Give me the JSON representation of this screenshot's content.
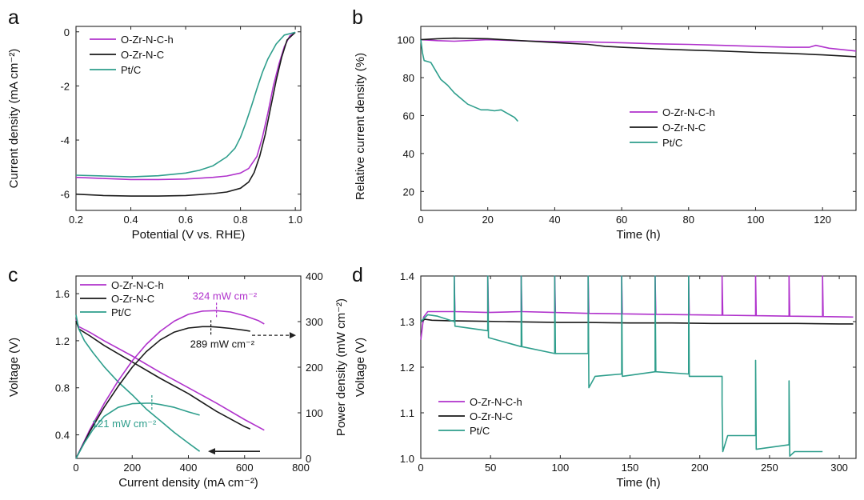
{
  "colors": {
    "purple": "#B032CC",
    "black": "#1a1a1a",
    "teal": "#2E9E8C"
  },
  "chart_data": [
    {
      "panel": "a",
      "type": "line",
      "xlabel": "Potential (V vs. RHE)",
      "ylabel": "Current density (mA cm⁻²)",
      "xlim": [
        0.2,
        1.02
      ],
      "ylim": [
        -6.6,
        0.2
      ],
      "xticks": [
        0.2,
        0.4,
        0.6,
        0.8,
        1.0
      ],
      "xtick_labels": [
        "0.2",
        "0.4",
        "0.6",
        "0.8",
        "1.0"
      ],
      "yticks": [
        0,
        -2,
        -4,
        -6
      ],
      "ytick_labels": [
        "0",
        "-2",
        "-4",
        "-6"
      ],
      "legend_position": "top-left",
      "series": [
        {
          "name": "O-Zr-N-C-h",
          "color": "#B032CC",
          "x": [
            0.2,
            0.3,
            0.4,
            0.5,
            0.6,
            0.7,
            0.75,
            0.8,
            0.83,
            0.86,
            0.88,
            0.9,
            0.92,
            0.94,
            0.96,
            0.98,
            1.0
          ],
          "y": [
            -5.38,
            -5.42,
            -5.46,
            -5.46,
            -5.44,
            -5.38,
            -5.33,
            -5.22,
            -5.05,
            -4.6,
            -3.9,
            -3.0,
            -2.0,
            -1.2,
            -0.55,
            -0.15,
            -0.02
          ]
        },
        {
          "name": "O-Zr-N-C",
          "color": "#1a1a1a",
          "x": [
            0.2,
            0.3,
            0.4,
            0.5,
            0.6,
            0.7,
            0.75,
            0.8,
            0.83,
            0.85,
            0.87,
            0.89,
            0.91,
            0.93,
            0.95,
            0.97,
            1.0
          ],
          "y": [
            -6.0,
            -6.05,
            -6.07,
            -6.07,
            -6.05,
            -5.98,
            -5.92,
            -5.78,
            -5.55,
            -5.2,
            -4.6,
            -3.8,
            -2.8,
            -1.8,
            -0.95,
            -0.3,
            -0.02
          ]
        },
        {
          "name": "Pt/C",
          "color": "#2E9E8C",
          "x": [
            0.2,
            0.3,
            0.4,
            0.5,
            0.6,
            0.65,
            0.7,
            0.75,
            0.78,
            0.8,
            0.82,
            0.84,
            0.86,
            0.88,
            0.9,
            0.93,
            0.96,
            1.0
          ],
          "y": [
            -5.3,
            -5.33,
            -5.36,
            -5.32,
            -5.22,
            -5.12,
            -4.95,
            -4.62,
            -4.3,
            -3.9,
            -3.35,
            -2.75,
            -2.1,
            -1.5,
            -1.0,
            -0.45,
            -0.12,
            -0.02
          ]
        }
      ]
    },
    {
      "panel": "b",
      "type": "line",
      "xlabel": "Time (h)",
      "ylabel": "Relative current density (%)",
      "xlim": [
        0,
        130
      ],
      "ylim": [
        10,
        107
      ],
      "xticks": [
        0,
        20,
        40,
        60,
        80,
        100,
        120
      ],
      "xtick_labels": [
        "0",
        "20",
        "40",
        "60",
        "80",
        "100",
        "120"
      ],
      "yticks": [
        20,
        40,
        60,
        80,
        100
      ],
      "ytick_labels": [
        "20",
        "40",
        "60",
        "80",
        "100"
      ],
      "legend_position": "center-right",
      "series": [
        {
          "name": "O-Zr-N-C-h",
          "color": "#B032CC",
          "x": [
            0,
            5,
            10,
            20,
            30,
            40,
            50,
            60,
            70,
            80,
            90,
            100,
            110,
            116,
            118,
            122,
            130
          ],
          "y": [
            100,
            99.5,
            99.2,
            100,
            99.4,
            99,
            98.8,
            98.4,
            97.8,
            97.5,
            97,
            96.5,
            96,
            96,
            97,
            95.5,
            94
          ]
        },
        {
          "name": "O-Zr-N-C",
          "color": "#1a1a1a",
          "x": [
            0,
            5,
            10,
            20,
            30,
            40,
            50,
            55,
            60,
            70,
            80,
            90,
            100,
            110,
            120,
            130
          ],
          "y": [
            100,
            100.5,
            100.8,
            100.5,
            99.5,
            98.5,
            97.5,
            96.5,
            96,
            95.2,
            94.5,
            94,
            93.3,
            92.8,
            92,
            91
          ]
        },
        {
          "name": "Pt/C",
          "color": "#2E9E8C",
          "x": [
            0,
            0.5,
            1,
            2,
            3,
            4,
            5,
            6,
            8,
            10,
            12,
            14,
            16,
            18,
            20,
            22,
            24,
            26,
            28,
            29
          ],
          "y": [
            100,
            93,
            89,
            88.5,
            88,
            85,
            82,
            79,
            76,
            72,
            69,
            66,
            64.5,
            63,
            63,
            62.5,
            63,
            61,
            59,
            57
          ]
        }
      ]
    },
    {
      "panel": "c",
      "type": "line",
      "xlabel": "Current density (mA cm⁻²)",
      "ylabel": "Voltage (V)",
      "y2label": "Power density (mW cm⁻²)",
      "xlim": [
        0,
        800
      ],
      "ylim": [
        0.2,
        1.75
      ],
      "y2lim": [
        0,
        400
      ],
      "xticks": [
        0,
        200,
        400,
        600,
        800
      ],
      "xtick_labels": [
        "0",
        "200",
        "400",
        "600",
        "800"
      ],
      "yticks": [
        0.4,
        0.8,
        1.2,
        1.6
      ],
      "ytick_labels": [
        "0.4",
        "0.8",
        "1.2",
        "1.6"
      ],
      "y2ticks": [
        0,
        100,
        200,
        300,
        400
      ],
      "y2tick_labels": [
        "0",
        "100",
        "200",
        "300",
        "400"
      ],
      "legend_position": "top-left",
      "annotations": [
        {
          "text": "324 mW cm⁻²",
          "color": "#B032CC",
          "x": 500,
          "y2": 324
        },
        {
          "text": "289 mW cm⁻²",
          "color": "#1a1a1a",
          "x": 480,
          "y2": 289
        },
        {
          "text": "121 mW cm⁻²",
          "color": "#2E9E8C",
          "x": 270,
          "y2": 121
        }
      ],
      "series": [
        {
          "name": "O-Zr-N-C-h",
          "axis": "left",
          "color": "#B032CC",
          "x": [
            0,
            10,
            50,
            100,
            200,
            300,
            400,
            500,
            600,
            670
          ],
          "y": [
            1.38,
            1.32,
            1.27,
            1.2,
            1.07,
            0.93,
            0.8,
            0.67,
            0.53,
            0.44
          ]
        },
        {
          "name": "O-Zr-N-C",
          "axis": "left",
          "color": "#1a1a1a",
          "x": [
            0,
            10,
            50,
            100,
            200,
            300,
            400,
            500,
            600,
            620
          ],
          "y": [
            1.37,
            1.3,
            1.24,
            1.16,
            1.02,
            0.88,
            0.75,
            0.6,
            0.47,
            0.45
          ]
        },
        {
          "name": "Pt/C",
          "axis": "left",
          "color": "#2E9E8C",
          "x": [
            0,
            10,
            30,
            60,
            100,
            150,
            200,
            250,
            300,
            350,
            400,
            440
          ],
          "y": [
            1.42,
            1.3,
            1.2,
            1.1,
            0.98,
            0.85,
            0.74,
            0.62,
            0.52,
            0.42,
            0.33,
            0.26
          ]
        },
        {
          "name": "O-Zr-N-C-h power",
          "axis": "right",
          "color": "#B032CC",
          "x": [
            0,
            50,
            100,
            150,
            200,
            250,
            300,
            350,
            400,
            450,
            500,
            550,
            600,
            650,
            670
          ],
          "y": [
            0,
            64,
            120,
            170,
            214,
            250,
            279,
            301,
            316,
            323,
            324,
            321,
            313,
            302,
            295
          ]
        },
        {
          "name": "O-Zr-N-C power",
          "axis": "right",
          "color": "#1a1a1a",
          "x": [
            0,
            50,
            100,
            150,
            200,
            250,
            300,
            350,
            400,
            450,
            480,
            500,
            550,
            600,
            620
          ],
          "y": [
            0,
            60,
            112,
            158,
            200,
            234,
            260,
            277,
            286,
            289,
            289,
            288,
            285,
            281,
            279
          ]
        },
        {
          "name": "Pt/C power",
          "axis": "right",
          "color": "#2E9E8C",
          "x": [
            0,
            30,
            60,
            100,
            150,
            200,
            250,
            270,
            300,
            350,
            400,
            440
          ],
          "y": [
            0,
            34,
            63,
            92,
            112,
            120,
            121,
            121,
            118,
            112,
            102,
            95
          ]
        }
      ]
    },
    {
      "panel": "d",
      "type": "line",
      "xlabel": "Time (h)",
      "ylabel": "Voltage (V)",
      "xlim": [
        0,
        312
      ],
      "ylim": [
        1.0,
        1.4
      ],
      "xticks": [
        0,
        50,
        100,
        150,
        200,
        250,
        300
      ],
      "xtick_labels": [
        "0",
        "50",
        "100",
        "150",
        "200",
        "250",
        "300"
      ],
      "yticks": [
        1.0,
        1.1,
        1.2,
        1.3,
        1.4
      ],
      "ytick_labels": [
        "1.0",
        "1.1",
        "1.2",
        "1.3",
        "1.4"
      ],
      "legend_position": "bottom-left",
      "series": [
        {
          "name": "O-Zr-N-C-h",
          "color": "#B032CC",
          "x": [
            0,
            2,
            5,
            24,
            24,
            24.5,
            48,
            48,
            48.5,
            72,
            72,
            72.5,
            96,
            96,
            96.5,
            120,
            120,
            120.5,
            144,
            144,
            144.5,
            168,
            168,
            168.5,
            192,
            192,
            192.5,
            216,
            216,
            216.5,
            240,
            240,
            240.5,
            264,
            264,
            264.5,
            288,
            288,
            288.5,
            310
          ],
          "y": [
            1.26,
            1.31,
            1.322,
            1.322,
            1.4,
            1.322,
            1.32,
            1.4,
            1.32,
            1.322,
            1.4,
            1.322,
            1.32,
            1.4,
            1.32,
            1.318,
            1.4,
            1.318,
            1.317,
            1.4,
            1.317,
            1.316,
            1.4,
            1.316,
            1.315,
            1.4,
            1.315,
            1.314,
            1.4,
            1.314,
            1.313,
            1.4,
            1.313,
            1.312,
            1.4,
            1.312,
            1.311,
            1.4,
            1.311,
            1.31
          ]
        },
        {
          "name": "O-Zr-N-C",
          "color": "#1a1a1a",
          "x": [
            0,
            3,
            8,
            20,
            40,
            60,
            80,
            100,
            120,
            150,
            180,
            210,
            240,
            270,
            300,
            310
          ],
          "y": [
            1.3,
            1.305,
            1.303,
            1.302,
            1.301,
            1.3,
            1.299,
            1.298,
            1.298,
            1.297,
            1.297,
            1.296,
            1.296,
            1.296,
            1.295,
            1.295
          ]
        },
        {
          "name": "Pt/C",
          "color": "#2E9E8C",
          "x": [
            0,
            5,
            12,
            24,
            24,
            24.5,
            48,
            48,
            48.5,
            72,
            72,
            72.5,
            96,
            96,
            96.5,
            120,
            120,
            120.5,
            125,
            144,
            144,
            144.5,
            168,
            168,
            168.5,
            192,
            192,
            192.5,
            216,
            216,
            216.5,
            220,
            240,
            240,
            240.5,
            264,
            264,
            264.5,
            268,
            288
          ],
          "y": [
            1.3,
            1.315,
            1.312,
            1.3,
            1.4,
            1.29,
            1.28,
            1.4,
            1.265,
            1.245,
            1.4,
            1.245,
            1.23,
            1.4,
            1.23,
            1.23,
            1.4,
            1.155,
            1.18,
            1.185,
            1.4,
            1.18,
            1.19,
            1.4,
            1.19,
            1.185,
            1.4,
            1.18,
            1.18,
            1.12,
            1.015,
            1.05,
            1.05,
            1.215,
            1.02,
            1.03,
            1.17,
            1.005,
            1.015,
            1.015
          ]
        }
      ]
    }
  ]
}
